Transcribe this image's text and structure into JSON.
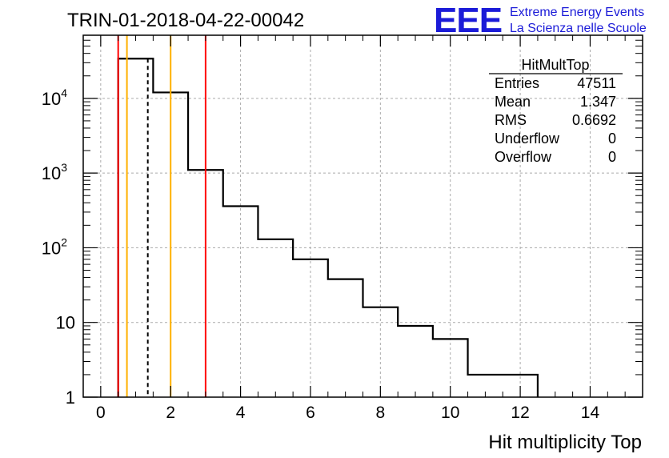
{
  "chart_data": {
    "type": "histogram",
    "title": "TRIN-01-2018-04-22-00042",
    "xlabel": "Hit multiplicity Top",
    "ylabel": "",
    "xlim": [
      -0.5,
      15.5
    ],
    "ylim": [
      1,
      70000
    ],
    "yscale": "log",
    "grid": true,
    "x_ticks": [
      0,
      2,
      4,
      6,
      8,
      10,
      12,
      14
    ],
    "x_tick_labels": [
      "0",
      "2",
      "4",
      "6",
      "8",
      "10",
      "12",
      "14"
    ],
    "y_ticks": [
      {
        "value": 1,
        "base": "1",
        "exp": ""
      },
      {
        "value": 10,
        "base": "10",
        "exp": ""
      },
      {
        "value": 100,
        "base": "10",
        "exp": "2"
      },
      {
        "value": 1000,
        "base": "10",
        "exp": "3"
      },
      {
        "value": 10000,
        "base": "10",
        "exp": "4"
      }
    ],
    "bins": [
      {
        "x0": 0.5,
        "x1": 1.5,
        "count": 34000
      },
      {
        "x0": 1.5,
        "x1": 2.5,
        "count": 12000
      },
      {
        "x0": 2.5,
        "x1": 3.5,
        "count": 1100
      },
      {
        "x0": 3.5,
        "x1": 4.5,
        "count": 360
      },
      {
        "x0": 4.5,
        "x1": 5.5,
        "count": 130
      },
      {
        "x0": 5.5,
        "x1": 6.5,
        "count": 70
      },
      {
        "x0": 6.5,
        "x1": 7.5,
        "count": 38
      },
      {
        "x0": 7.5,
        "x1": 8.5,
        "count": 16
      },
      {
        "x0": 8.5,
        "x1": 9.5,
        "count": 9
      },
      {
        "x0": 9.5,
        "x1": 10.5,
        "count": 6
      },
      {
        "x0": 10.5,
        "x1": 12.5,
        "count": 2
      }
    ],
    "vertical_lines": [
      {
        "x": 0.5,
        "color": "#ff0000",
        "style": "solid"
      },
      {
        "x": 3.0,
        "color": "#ff0000",
        "style": "solid"
      },
      {
        "x": 0.75,
        "color": "#ffb000",
        "style": "solid"
      },
      {
        "x": 2.0,
        "color": "#ffb000",
        "style": "solid"
      },
      {
        "x": 1.347,
        "color": "#000000",
        "style": "dashed"
      }
    ],
    "stats_box": {
      "title": "HitMultTop",
      "rows": [
        {
          "label": "Entries",
          "value": "47511"
        },
        {
          "label": "Mean",
          "value": "1.347"
        },
        {
          "label": "RMS",
          "value": "0.6692"
        },
        {
          "label": "Underflow",
          "value": "0"
        },
        {
          "label": "Overflow",
          "value": "0"
        }
      ]
    }
  },
  "logo": {
    "mark": "EEE",
    "line1": "Extreme Energy Events",
    "line2": "La Scienza nelle Scuole"
  },
  "colors": {
    "red_line": "#ff0000",
    "orange_line": "#ffb000",
    "logo_blue": "#1b1bd8",
    "grid": "#aaaaaa"
  }
}
